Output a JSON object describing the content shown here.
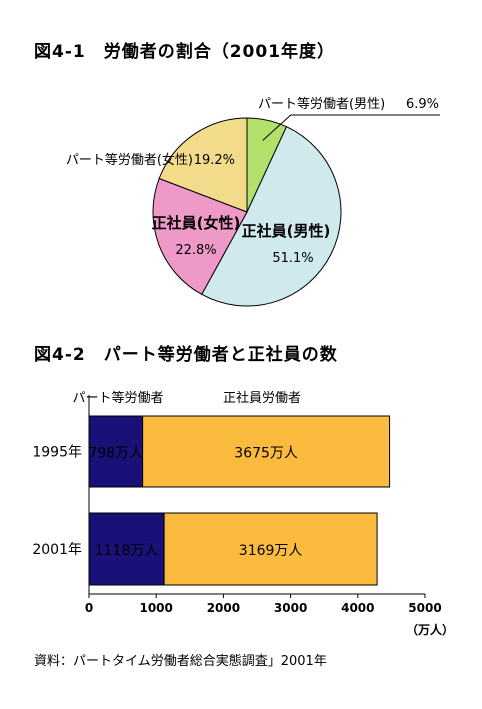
{
  "figure1": {
    "title": "図4-1　労働者の割合（2001年度）"
  },
  "figure2": {
    "title": "図4-2　パート等労働者と正社員の数"
  },
  "source": "資料：パートタイム労働者総合実態調査」2001年",
  "chart_data": [
    {
      "type": "pie",
      "title": "図4-1　労働者の割合（2001年度）",
      "slices": [
        {
          "name": "パート等労働者(男性)",
          "label_pct": "6.9%",
          "value": 6.9,
          "color": "#b3e06a",
          "label_style": "outside"
        },
        {
          "name": "正社員(男性)",
          "label_pct": "51.1%",
          "value": 51.1,
          "color": "#cfe9ec",
          "label_style": "inside"
        },
        {
          "name": "正社員(女性)",
          "label_pct": "22.8%",
          "value": 22.8,
          "color": "#ef99c9",
          "label_style": "inside"
        },
        {
          "name": "パート等労働者(女性)",
          "label_pct": "19.2%",
          "value": 19.2,
          "color": "#f2dc8c",
          "label_style": "outside"
        }
      ]
    },
    {
      "type": "bar",
      "orientation": "horizontal",
      "stacked": true,
      "title": "図4-2　パート等労働者と正社員の数",
      "categories": [
        "1995年",
        "2001年"
      ],
      "series": [
        {
          "name": "パート等労働者",
          "values": [
            798,
            1118
          ],
          "labels": [
            "798万人",
            "1118万人"
          ],
          "color": "#1a1178"
        },
        {
          "name": "正社員労働者",
          "values": [
            3675,
            3169
          ],
          "labels": [
            "3675万人",
            "3169万人"
          ],
          "color": "#fbbb3f"
        }
      ],
      "xlim": [
        0,
        5000
      ],
      "xticks": [
        0,
        1000,
        2000,
        3000,
        4000,
        5000
      ],
      "xticklabels": [
        "0",
        "1000",
        "2000",
        "3000",
        "4000",
        "5000"
      ],
      "xunit": "（万人）"
    }
  ]
}
